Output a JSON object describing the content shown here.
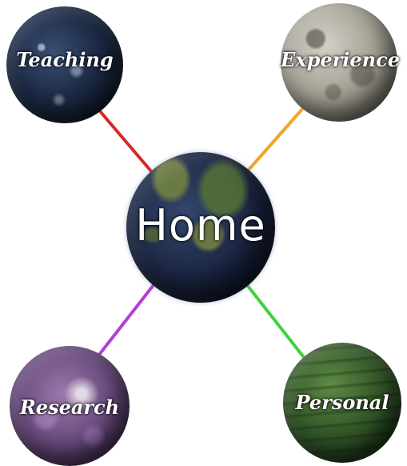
{
  "planets": {
    "teaching": {
      "label": "Teaching"
    },
    "experience": {
      "label": "Experience"
    },
    "home": {
      "label": "Home"
    },
    "research": {
      "label": "Research"
    },
    "personal": {
      "label": "Personal"
    }
  },
  "colors": {
    "connector_teaching": "#d42a2a",
    "connector_experience": "#f0a52a",
    "connector_research": "#b23fd6",
    "connector_personal": "#3ed23e"
  }
}
